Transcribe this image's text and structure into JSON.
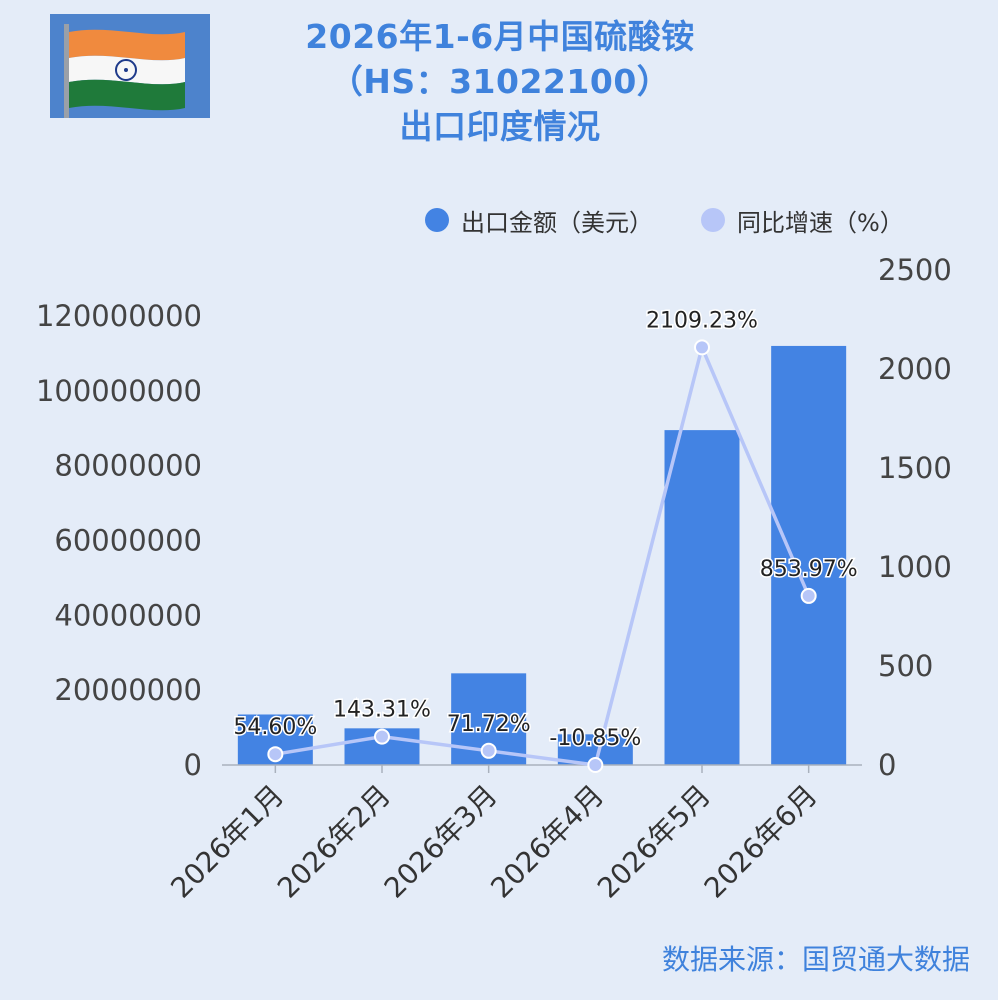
{
  "title_lines": [
    "2026年1-6月中国硫酸铵",
    "（HS：31022100）",
    "出口印度情况"
  ],
  "source": "数据来源：国贸通大数据",
  "colors": {
    "bar": "#4383e3",
    "line": "#b7c6f8",
    "title": "#3f82dc"
  },
  "chart_data": {
    "type": "bar",
    "categories": [
      "2026年1月",
      "2026年2月",
      "2026年3月",
      "2026年4月",
      "2026年5月",
      "2026年6月"
    ],
    "series": [
      {
        "name": "出口金额（美元）",
        "type": "bar",
        "axis": "left",
        "values": [
          13500000,
          9800000,
          24500000,
          8200000,
          89500000,
          112000000
        ]
      },
      {
        "name": "同比增速（%）",
        "type": "line",
        "axis": "right",
        "values": [
          54.6,
          143.31,
          71.72,
          -10.85,
          2109.23,
          853.97
        ],
        "labels": [
          "54.60%",
          "143.31%",
          "71.72%",
          "-10.85%",
          "2109.23%",
          "853.97%"
        ]
      }
    ],
    "y_left": {
      "min": 0,
      "max": 120000000,
      "ticks": [
        "0",
        "20000000",
        "40000000",
        "60000000",
        "80000000",
        "100000000",
        "120000000"
      ]
    },
    "y_right": {
      "min": 0,
      "max": 2500,
      "ticks": [
        "0",
        "500",
        "1000",
        "1500",
        "2000",
        "2500"
      ]
    },
    "legend_position": "top-right",
    "grid": false
  }
}
